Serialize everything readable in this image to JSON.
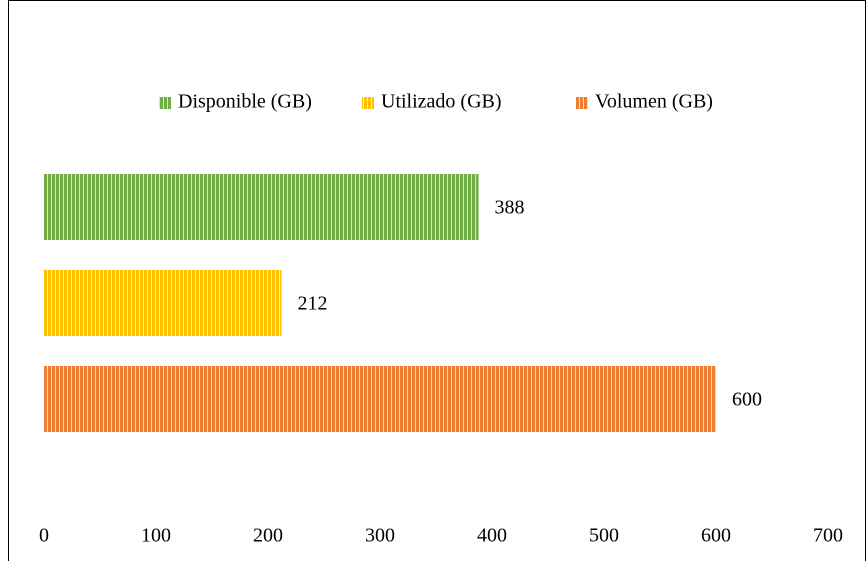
{
  "chart_data": {
    "type": "bar",
    "orientation": "horizontal",
    "categories": [
      null
    ],
    "series": [
      {
        "name": "Disponible (GB)",
        "color": "#70ad47",
        "values": [
          388
        ]
      },
      {
        "name": "Utilizado (GB)",
        "color": "#ffc000",
        "values": [
          212
        ]
      },
      {
        "name": "Volumen (GB)",
        "color": "#ed7d31",
        "values": [
          600
        ]
      }
    ],
    "xlim": [
      0,
      700
    ],
    "xticks": [
      0,
      100,
      200,
      300,
      400,
      500,
      600,
      700
    ],
    "grid": false,
    "legend": "top",
    "pattern": "vertical-stripes"
  }
}
